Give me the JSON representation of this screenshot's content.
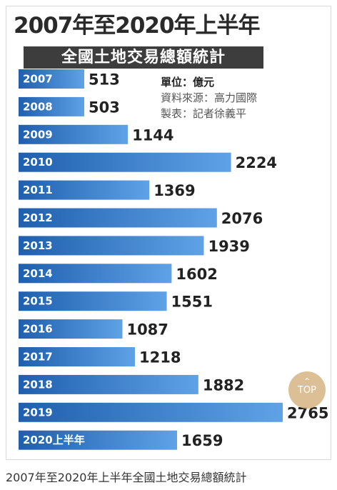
{
  "chart_data": {
    "type": "bar",
    "orientation": "horizontal",
    "title": "2007年至2020年上半年",
    "subtitle": "全國土地交易總額統計",
    "unit_label": "單位：億元",
    "source_label": "資料來源：高力國際",
    "maker_label": "製表：記者徐義平",
    "categories": [
      "2007",
      "2008",
      "2009",
      "2010",
      "2011",
      "2012",
      "2013",
      "2014",
      "2015",
      "2016",
      "2017",
      "2018",
      "2019",
      "2020上半年"
    ],
    "values": [
      513,
      503,
      1144,
      2224,
      1369,
      2076,
      1939,
      1602,
      1551,
      1087,
      1218,
      1882,
      2765,
      1659
    ],
    "xlim": [
      0,
      2765
    ],
    "grid": false,
    "bar_color_dark": "#1f5fae",
    "bar_color_light": "#5fa2e6"
  },
  "top_button": {
    "icon": "chevron-up-icon",
    "label": "TOP"
  },
  "caption": "2007年至2020年上半年全國土地交易總額統計"
}
